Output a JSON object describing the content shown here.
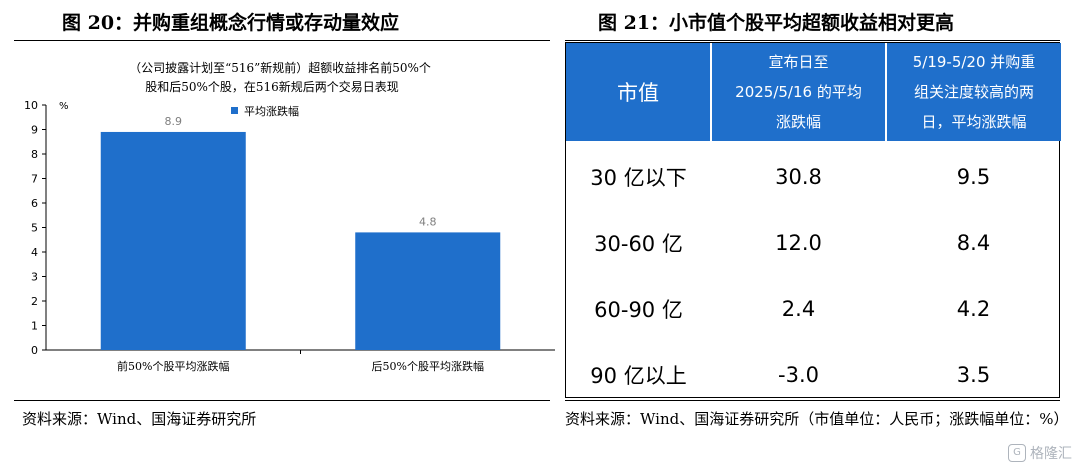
{
  "left_figure": {
    "title": "图 20：并购重组概念行情或存动量效应",
    "source": "资料来源：Wind、国海证券研究所"
  },
  "right_figure": {
    "title": "图 21：小市值个股平均超额收益相对更高",
    "source": "资料来源：Wind、国海证券研究所（市值单位：人民币；涨跌幅单位：%）",
    "table": {
      "headers": {
        "col1": "市值",
        "col2_lines": [
          "宣布日至",
          "2025/5/16 的平均",
          "涨跌幅"
        ],
        "col3_lines": [
          "5/19-5/20 并购重",
          "组关注度较高的两",
          "日，平均涨跌幅"
        ]
      },
      "rows": [
        {
          "cap": "30 亿以下",
          "avg_to_516": "30.8",
          "avg_519_520": "9.5"
        },
        {
          "cap": "30-60 亿",
          "avg_to_516": "12.0",
          "avg_519_520": "8.4"
        },
        {
          "cap": "60-90 亿",
          "avg_to_516": "2.4",
          "avg_519_520": "4.2"
        },
        {
          "cap": "90 亿以上",
          "avg_to_516": "-3.0",
          "avg_519_520": "3.5"
        }
      ]
    }
  },
  "chart_data": {
    "type": "bar",
    "subtitle_lines": [
      "（公司披露计划至“516”新规前）超额收益排名前50%个",
      "股和后50%个股，在516新规后两个交易日表现"
    ],
    "y_unit": "%",
    "categories": [
      "前50%个股平均涨跌幅",
      "后50%个股平均涨跌幅"
    ],
    "series": [
      {
        "name": "平均涨跌幅",
        "values": [
          8.9,
          4.8
        ]
      }
    ],
    "data_labels": [
      "8.9",
      "4.8"
    ],
    "ylim": [
      0,
      10
    ],
    "yticks": [
      0,
      1,
      2,
      3,
      4,
      5,
      6,
      7,
      8,
      9,
      10
    ],
    "legend": "top-center",
    "bar_color": "#1f6fcb",
    "label_color": "#7f7f7f"
  },
  "watermark": {
    "logo": "G",
    "text": "格隆汇"
  }
}
